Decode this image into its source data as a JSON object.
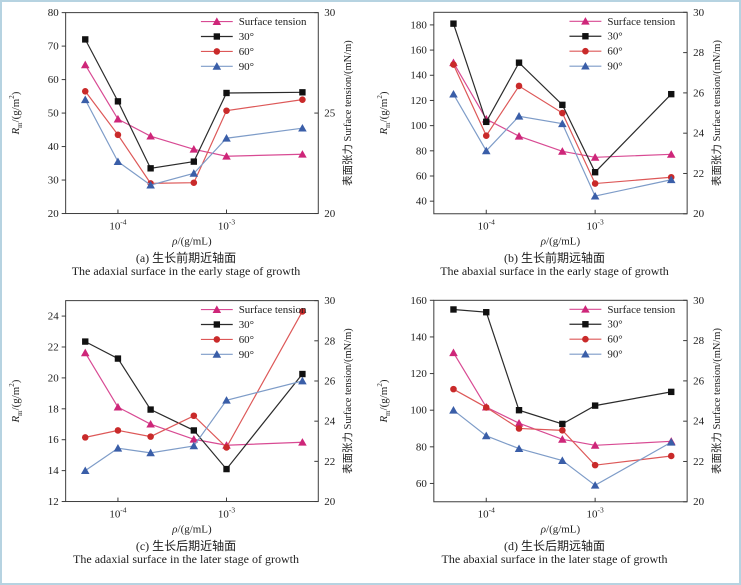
{
  "frame": {
    "border_color": "#b6d3e1",
    "background": "#ffffff",
    "axis_color": "#3c3c3c",
    "text_color": "#1d1d1d"
  },
  "axis_labels": {
    "y_left_prefix": "R",
    "y_left_sub": "m",
    "y_left_mid": "/(g/m",
    "y_left_sup": "2",
    "y_left_end": ")",
    "y_left_plain": "Rm/(g/m2)",
    "y_right": "表面张力 Surface tension/(mN/m)",
    "x_prefix": "ρ",
    "x_suffix": "/(g/mL)",
    "x_plain": "ρ/(g/mL)"
  },
  "legend": {
    "position": "top-right-inside",
    "items": [
      "Surface tension",
      "30°",
      "60°",
      "90°"
    ]
  },
  "series_colors": {
    "surface_tension": {
      "line": "#d84a93",
      "marker": "#ce2679"
    },
    "deg30": {
      "line": "#2b2b2b",
      "marker": "#111111"
    },
    "deg60": {
      "line": "#dd5858",
      "marker": "#c92a2a"
    },
    "deg90": {
      "line": "#7e9cc8",
      "marker": "#3a5ea8"
    }
  },
  "chart_data": [
    {
      "type": "line",
      "id": "a",
      "caption_zh": "(a) 生长前期近轴面",
      "caption_en": "The adaxial surface in the early stage of growth",
      "xlabel": "ρ/(g/mL)",
      "ylabel_left": "Rm/(g/m2)",
      "ylabel_right": "表面张力 Surface tension/(mN/m)",
      "x": [
        5e-05,
        0.0001,
        0.0002,
        0.0005,
        0.001,
        0.005
      ],
      "xlim": [
        3.3e-05,
        0.007
      ],
      "x_ticks": [
        {
          "value": 0.0001,
          "label_base": "10",
          "label_exp": "-4"
        },
        {
          "value": 0.001,
          "label_base": "10",
          "label_exp": "-3"
        }
      ],
      "left_ylim": [
        20,
        80
      ],
      "left_ticks": [
        20,
        30,
        40,
        50,
        60,
        70,
        80
      ],
      "right_ylim": [
        20,
        30
      ],
      "right_ticks": [
        20,
        25,
        30
      ],
      "series": [
        {
          "name": "Surface tension",
          "axis": "right",
          "marker": "triangle",
          "line": "#d84a93",
          "marker_color": "#ce2679",
          "values": [
            27.4,
            24.7,
            23.85,
            23.2,
            22.85,
            22.95
          ]
        },
        {
          "name": "30°",
          "axis": "left",
          "marker": "square",
          "line": "#2b2b2b",
          "marker_color": "#111111",
          "values": [
            72,
            53.5,
            33.5,
            35.5,
            56,
            56.2
          ]
        },
        {
          "name": "60°",
          "axis": "left",
          "marker": "circle",
          "line": "#dd5858",
          "marker_color": "#c92a2a",
          "values": [
            56.5,
            43.5,
            29,
            29.2,
            50.7,
            54
          ]
        },
        {
          "name": "90°",
          "axis": "left",
          "marker": "triangle",
          "line": "#7e9cc8",
          "marker_color": "#3a5ea8",
          "values": [
            54,
            35.5,
            28.5,
            32,
            42.5,
            45.5
          ]
        }
      ]
    },
    {
      "type": "line",
      "id": "b",
      "caption_zh": "(b) 生长前期远轴面",
      "caption_en": "The abaxial surface in the early stage of growth",
      "xlabel": "ρ/(g/mL)",
      "ylabel_left": "Rm/(g/m2)",
      "ylabel_right": "表面张力 Surface tension/(mN/m)",
      "x": [
        5e-05,
        0.0001,
        0.0002,
        0.0005,
        0.001,
        0.005
      ],
      "xlim": [
        3.3e-05,
        0.007
      ],
      "x_ticks": [
        {
          "value": 0.0001,
          "label_base": "10",
          "label_exp": "-4"
        },
        {
          "value": 0.001,
          "label_base": "10",
          "label_exp": "-3"
        }
      ],
      "left_ylim": [
        30,
        190
      ],
      "left_ticks": [
        40,
        60,
        80,
        100,
        120,
        140,
        160,
        180
      ],
      "right_ylim": [
        20,
        30
      ],
      "right_ticks": [
        20,
        22,
        24,
        26,
        28,
        30
      ],
      "series": [
        {
          "name": "Surface tension",
          "axis": "right",
          "marker": "triangle",
          "line": "#d84a93",
          "marker_color": "#ce2679",
          "values": [
            27.5,
            24.7,
            23.85,
            23.1,
            22.8,
            22.95
          ]
        },
        {
          "name": "30°",
          "axis": "left",
          "marker": "square",
          "line": "#2b2b2b",
          "marker_color": "#111111",
          "values": [
            181,
            103,
            150,
            116.5,
            63,
            125
          ]
        },
        {
          "name": "60°",
          "axis": "left",
          "marker": "circle",
          "line": "#dd5858",
          "marker_color": "#c92a2a",
          "values": [
            148.5,
            92,
            131.5,
            110,
            54,
            59
          ]
        },
        {
          "name": "90°",
          "axis": "left",
          "marker": "triangle",
          "line": "#7e9cc8",
          "marker_color": "#3a5ea8",
          "values": [
            125,
            80,
            107.5,
            101.5,
            44,
            57
          ]
        }
      ]
    },
    {
      "type": "line",
      "id": "c",
      "caption_zh": "(c) 生长后期近轴面",
      "caption_en": "The adaxial surface in the later stage of growth",
      "xlabel": "ρ/(g/mL)",
      "ylabel_left": "Rm/(g/m2)",
      "ylabel_right": "表面张力 Surface tension/(mN/m)",
      "x": [
        5e-05,
        0.0001,
        0.0002,
        0.0005,
        0.001,
        0.005
      ],
      "xlim": [
        3.3e-05,
        0.007
      ],
      "x_ticks": [
        {
          "value": 0.0001,
          "label_base": "10",
          "label_exp": "-4"
        },
        {
          "value": 0.001,
          "label_base": "10",
          "label_exp": "-3"
        }
      ],
      "left_ylim": [
        12,
        25
      ],
      "left_ticks": [
        12,
        14,
        16,
        18,
        20,
        22,
        24
      ],
      "right_ylim": [
        20,
        30
      ],
      "right_ticks": [
        20,
        22,
        24,
        26,
        28,
        30
      ],
      "series": [
        {
          "name": "Surface tension",
          "axis": "right",
          "marker": "triangle",
          "line": "#d84a93",
          "marker_color": "#ce2679",
          "values": [
            27.4,
            24.7,
            23.85,
            23.1,
            22.8,
            22.95
          ]
        },
        {
          "name": "30°",
          "axis": "left",
          "marker": "square",
          "line": "#2b2b2b",
          "marker_color": "#111111",
          "values": [
            22.35,
            21.25,
            17.95,
            16.6,
            14.1,
            20.25
          ]
        },
        {
          "name": "60°",
          "axis": "left",
          "marker": "circle",
          "line": "#dd5858",
          "marker_color": "#c92a2a",
          "values": [
            16.15,
            16.6,
            16.2,
            17.55,
            15.5,
            24.3
          ]
        },
        {
          "name": "90°",
          "axis": "left",
          "marker": "triangle",
          "line": "#7e9cc8",
          "marker_color": "#3a5ea8",
          "values": [
            14.0,
            15.45,
            15.15,
            15.6,
            18.55,
            19.8
          ]
        }
      ]
    },
    {
      "type": "line",
      "id": "d",
      "caption_zh": "(d) 生长后期远轴面",
      "caption_en": "The abaxial surface in the later stage of growth",
      "xlabel": "ρ/(g/mL)",
      "ylabel_left": "Rm/(g/m2)",
      "ylabel_right": "表面张力 Surface tension/(mN/m)",
      "x": [
        5e-05,
        0.0001,
        0.0002,
        0.0005,
        0.001,
        0.005
      ],
      "xlim": [
        3.3e-05,
        0.007
      ],
      "x_ticks": [
        {
          "value": 0.0001,
          "label_base": "10",
          "label_exp": "-4"
        },
        {
          "value": 0.001,
          "label_base": "10",
          "label_exp": "-3"
        }
      ],
      "left_ylim": [
        50,
        160
      ],
      "left_ticks": [
        60,
        80,
        100,
        120,
        140,
        160
      ],
      "right_ylim": [
        20,
        30
      ],
      "right_ticks": [
        20,
        22,
        24,
        26,
        28,
        30
      ],
      "series": [
        {
          "name": "Surface tension",
          "axis": "right",
          "marker": "triangle",
          "line": "#d84a93",
          "marker_color": "#ce2679",
          "values": [
            27.4,
            24.7,
            23.9,
            23.1,
            22.8,
            23.0
          ]
        },
        {
          "name": "30°",
          "axis": "left",
          "marker": "square",
          "line": "#2b2b2b",
          "marker_color": "#111111",
          "values": [
            155,
            153.5,
            100,
            92.5,
            102.5,
            110
          ]
        },
        {
          "name": "60°",
          "axis": "left",
          "marker": "circle",
          "line": "#dd5858",
          "marker_color": "#c92a2a",
          "values": [
            111.5,
            101.5,
            90,
            89,
            70,
            75
          ]
        },
        {
          "name": "90°",
          "axis": "left",
          "marker": "triangle",
          "line": "#7e9cc8",
          "marker_color": "#3a5ea8",
          "values": [
            100,
            86,
            79,
            72.5,
            59,
            82.5
          ]
        }
      ]
    }
  ]
}
